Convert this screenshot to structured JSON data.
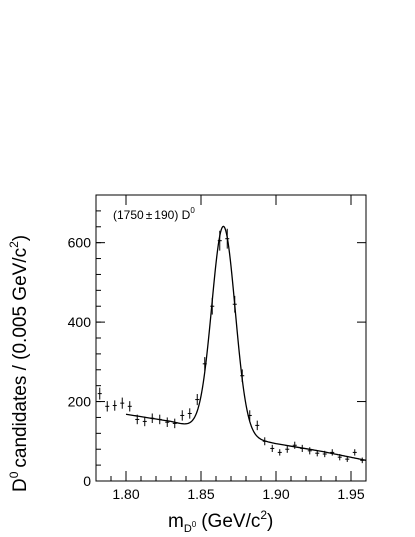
{
  "chart_data": {
    "type": "scatter",
    "annotation_prefix": "(1750",
    "annotation_pm": "±",
    "annotation_value": "190) D",
    "annotation_sup": "0",
    "xlabel_main": "m",
    "xlabel_sub": "D",
    "xlabel_subsup": "0",
    "xlabel_units": "(GeV/c",
    "xlabel_units_sup": "2",
    "xlabel_close": ")",
    "ylabel_prefix": "D",
    "ylabel_prefix_sup": "0",
    "ylabel_main": "candidates / (0.005 GeV/c",
    "ylabel_sup": "2",
    "ylabel_close": ")",
    "xlim": [
      1.78,
      1.96
    ],
    "ylim": [
      0,
      720
    ],
    "x_ticks": [
      1.8,
      1.85,
      1.9,
      1.95
    ],
    "x_tick_labels": [
      "1.80",
      "1.85",
      "1.90",
      "1.95"
    ],
    "y_ticks": [
      0,
      200,
      400,
      600
    ],
    "y_tick_labels": [
      "0",
      "200",
      "400",
      "600"
    ],
    "series": [
      {
        "points": [
          {
            "x": 1.7825,
            "y": 220,
            "err": 15
          },
          {
            "x": 1.7875,
            "y": 188,
            "err": 13
          },
          {
            "x": 1.7925,
            "y": 190,
            "err": 13
          },
          {
            "x": 1.7975,
            "y": 196,
            "err": 14
          },
          {
            "x": 1.8025,
            "y": 188,
            "err": 13
          },
          {
            "x": 1.8075,
            "y": 155,
            "err": 12
          },
          {
            "x": 1.8125,
            "y": 150,
            "err": 12
          },
          {
            "x": 1.8175,
            "y": 158,
            "err": 12
          },
          {
            "x": 1.8225,
            "y": 155,
            "err": 12
          },
          {
            "x": 1.8275,
            "y": 148,
            "err": 12
          },
          {
            "x": 1.8325,
            "y": 145,
            "err": 12
          },
          {
            "x": 1.8375,
            "y": 165,
            "err": 13
          },
          {
            "x": 1.8425,
            "y": 170,
            "err": 13
          },
          {
            "x": 1.8475,
            "y": 205,
            "err": 14
          },
          {
            "x": 1.8525,
            "y": 295,
            "err": 17
          },
          {
            "x": 1.8575,
            "y": 440,
            "err": 21
          },
          {
            "x": 1.8625,
            "y": 605,
            "err": 25
          },
          {
            "x": 1.8675,
            "y": 610,
            "err": 25
          },
          {
            "x": 1.8725,
            "y": 445,
            "err": 21
          },
          {
            "x": 1.8775,
            "y": 265,
            "err": 16
          },
          {
            "x": 1.8825,
            "y": 165,
            "err": 13
          },
          {
            "x": 1.8875,
            "y": 140,
            "err": 12
          },
          {
            "x": 1.8925,
            "y": 100,
            "err": 10
          },
          {
            "x": 1.8975,
            "y": 82,
            "err": 9
          },
          {
            "x": 1.9025,
            "y": 72,
            "err": 8
          },
          {
            "x": 1.9075,
            "y": 80,
            "err": 9
          },
          {
            "x": 1.9125,
            "y": 90,
            "err": 9
          },
          {
            "x": 1.9175,
            "y": 82,
            "err": 9
          },
          {
            "x": 1.9225,
            "y": 76,
            "err": 9
          },
          {
            "x": 1.9275,
            "y": 70,
            "err": 8
          },
          {
            "x": 1.9325,
            "y": 68,
            "err": 8
          },
          {
            "x": 1.9375,
            "y": 72,
            "err": 8
          },
          {
            "x": 1.9425,
            "y": 60,
            "err": 8
          },
          {
            "x": 1.9475,
            "y": 55,
            "err": 7
          },
          {
            "x": 1.9525,
            "y": 72,
            "err": 8
          },
          {
            "x": 1.9575,
            "y": 52,
            "err": 7
          }
        ]
      }
    ],
    "fit": {
      "x_range": [
        1.8,
        1.96
      ],
      "mean": 1.865,
      "sigma": 0.0078,
      "peak": 520,
      "background": [
        {
          "x": 1.8,
          "y": 168
        },
        {
          "x": 1.83,
          "y": 150
        },
        {
          "x": 1.85,
          "y": 132
        },
        {
          "x": 1.88,
          "y": 110
        },
        {
          "x": 1.9,
          "y": 94
        },
        {
          "x": 1.93,
          "y": 75
        },
        {
          "x": 1.96,
          "y": 52
        }
      ]
    }
  }
}
